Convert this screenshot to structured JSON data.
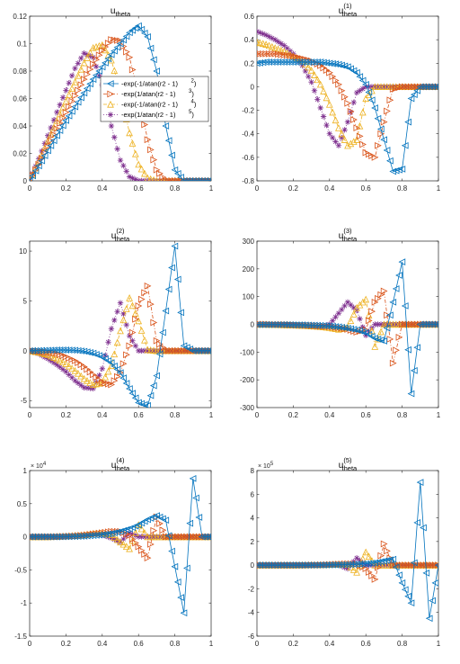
{
  "chart_data": [
    {
      "type": "line",
      "panel": "u_theta",
      "title": "u",
      "title_sub": "theta",
      "title_sup": "",
      "xlim": [
        0,
        1
      ],
      "ylim": [
        0,
        0.12
      ],
      "xticks": [
        "0",
        "0.2",
        "0.4",
        "0.6",
        "0.8",
        "1"
      ],
      "yticks": [
        "0",
        "0.02",
        "0.04",
        "0.06",
        "0.08",
        "0.1",
        "0.12"
      ],
      "ytick_values": [
        0,
        0.02,
        0.04,
        0.06,
        0.08,
        0.1,
        0.12
      ],
      "exponent": "",
      "x": [
        0.0,
        0.05,
        0.1,
        0.15,
        0.2,
        0.25,
        0.3,
        0.35,
        0.4,
        0.45,
        0.5,
        0.55,
        0.6,
        0.65,
        0.7,
        0.75,
        0.8,
        0.85,
        0.9,
        0.95,
        1.0
      ],
      "series": [
        {
          "values": [
            0,
            0.011,
            0.022,
            0.033,
            0.044,
            0.054,
            0.064,
            0.074,
            0.083,
            0.092,
            0.1,
            0.108,
            0.113,
            0.105,
            0.08,
            0.04,
            0.008,
            0,
            0,
            0,
            0
          ]
        },
        {
          "values": [
            0,
            0.012,
            0.025,
            0.038,
            0.05,
            0.062,
            0.074,
            0.085,
            0.095,
            0.103,
            0.102,
            0.09,
            0.063,
            0.03,
            0.008,
            0,
            0,
            0,
            0,
            0,
            0
          ]
        },
        {
          "values": [
            0,
            0.014,
            0.029,
            0.044,
            0.058,
            0.072,
            0.086,
            0.097,
            0.099,
            0.088,
            0.065,
            0.035,
            0.012,
            0.002,
            0,
            0,
            0,
            0,
            0,
            0,
            0
          ]
        },
        {
          "values": [
            0,
            0.016,
            0.033,
            0.05,
            0.066,
            0.082,
            0.093,
            0.09,
            0.07,
            0.04,
            0.015,
            0.003,
            0,
            0,
            0,
            0,
            0,
            0,
            0,
            0,
            0
          ]
        }
      ],
      "legend": {
        "placement": "upper-right",
        "entries": [
          {
            "label": "-exp(-1/atan(r2 - 1)",
            "sup": "2",
            "tail": ")"
          },
          {
            "label": "-exp(1/atan(r2 - 1)",
            "sup": "3",
            "tail": ")"
          },
          {
            "label": "-exp(-1/atan(r2 - 1)",
            "sup": "4",
            "tail": ")"
          },
          {
            "label": "-exp(1/atan(r2 - 1)",
            "sup": "5",
            "tail": ")"
          }
        ]
      }
    },
    {
      "type": "line",
      "panel": "u_theta_1",
      "title": "u",
      "title_sub": "theta",
      "title_sup": "(1)",
      "xlim": [
        0,
        1
      ],
      "ylim": [
        -0.8,
        0.6
      ],
      "xticks": [
        "0",
        "0.2",
        "0.4",
        "0.6",
        "0.8",
        "1"
      ],
      "yticks": [
        "-0.8",
        "-0.6",
        "-0.4",
        "-0.2",
        "0",
        "0.2",
        "0.4",
        "0.6"
      ],
      "ytick_values": [
        -0.8,
        -0.6,
        -0.4,
        -0.2,
        0,
        0.2,
        0.4,
        0.6
      ],
      "exponent": "",
      "x": [
        0.0,
        0.05,
        0.1,
        0.15,
        0.2,
        0.25,
        0.3,
        0.35,
        0.4,
        0.45,
        0.5,
        0.55,
        0.6,
        0.65,
        0.7,
        0.75,
        0.8,
        0.85,
        0.9,
        0.95,
        1.0
      ],
      "series": [
        {
          "values": [
            0.2,
            0.21,
            0.21,
            0.21,
            0.21,
            0.21,
            0.21,
            0.21,
            0.2,
            0.19,
            0.17,
            0.12,
            0.02,
            -0.18,
            -0.45,
            -0.72,
            -0.7,
            -0.1,
            0,
            0,
            0
          ]
        },
        {
          "values": [
            0.28,
            0.28,
            0.28,
            0.27,
            0.26,
            0.24,
            0.22,
            0.18,
            0.12,
            0.02,
            -0.14,
            -0.35,
            -0.56,
            -0.6,
            -0.3,
            -0.02,
            0,
            0,
            0,
            0,
            0
          ]
        },
        {
          "values": [
            0.38,
            0.36,
            0.33,
            0.3,
            0.26,
            0.22,
            0.14,
            0.02,
            -0.15,
            -0.35,
            -0.5,
            -0.45,
            -0.1,
            0,
            0,
            0,
            0,
            0,
            0,
            0,
            0
          ]
        },
        {
          "values": [
            0.47,
            0.44,
            0.4,
            0.35,
            0.28,
            0.18,
            0.04,
            -0.18,
            -0.4,
            -0.5,
            -0.3,
            -0.05,
            0,
            0,
            0,
            0,
            0,
            0,
            0,
            0,
            0
          ]
        }
      ]
    },
    {
      "type": "line",
      "panel": "u_theta_2",
      "title": "u",
      "title_sub": "theta",
      "title_sup": "(2)",
      "xlim": [
        0,
        1
      ],
      "ylim": [
        -5.7,
        11
      ],
      "xticks": [
        "0",
        "0.2",
        "0.4",
        "0.6",
        "0.8",
        "1"
      ],
      "yticks": [
        "-5",
        "0",
        "5",
        "10"
      ],
      "ytick_values": [
        -5,
        0,
        5,
        10
      ],
      "exponent": "",
      "x": [
        0.0,
        0.05,
        0.1,
        0.15,
        0.2,
        0.25,
        0.3,
        0.35,
        0.4,
        0.45,
        0.5,
        0.55,
        0.6,
        0.65,
        0.7,
        0.75,
        0.8,
        0.85,
        0.9,
        0.95,
        1.0
      ],
      "series": [
        {
          "values": [
            0,
            0.02,
            0.05,
            0.08,
            0.08,
            0.05,
            -0.05,
            -0.25,
            -0.6,
            -1.2,
            -2.2,
            -3.8,
            -5.2,
            -5.5,
            -2.5,
            4.0,
            10.5,
            0.5,
            0,
            0,
            0
          ]
        },
        {
          "values": [
            0,
            -0.05,
            -0.15,
            -0.3,
            -0.6,
            -1.0,
            -1.6,
            -2.4,
            -3.2,
            -3.4,
            -2.2,
            0.5,
            4.5,
            6.5,
            1.0,
            0,
            0,
            0,
            0,
            0,
            0
          ]
        },
        {
          "values": [
            0,
            -0.15,
            -0.4,
            -0.8,
            -1.3,
            -2.0,
            -2.8,
            -3.4,
            -3.2,
            -1.5,
            2.0,
            5.3,
            3.0,
            0.1,
            0,
            0,
            0,
            0,
            0,
            0,
            0
          ]
        },
        {
          "values": [
            0,
            -0.3,
            -0.8,
            -1.4,
            -2.1,
            -3.0,
            -3.7,
            -3.8,
            -1.8,
            2.2,
            4.8,
            1.5,
            0,
            0,
            0,
            0,
            0,
            0,
            0,
            0,
            0
          ]
        }
      ]
    },
    {
      "type": "line",
      "panel": "u_theta_3",
      "title": "u",
      "title_sub": "theta",
      "title_sup": "(3)",
      "xlim": [
        0,
        1
      ],
      "ylim": [
        -300,
        300
      ],
      "xticks": [
        "0",
        "0.2",
        "0.4",
        "0.6",
        "0.8",
        "1"
      ],
      "yticks": [
        "-300",
        "-200",
        "-100",
        "0",
        "100",
        "200",
        "300"
      ],
      "ytick_values": [
        -300,
        -200,
        -100,
        0,
        100,
        200,
        300
      ],
      "exponent": "",
      "x": [
        0.0,
        0.05,
        0.1,
        0.15,
        0.2,
        0.25,
        0.3,
        0.35,
        0.4,
        0.45,
        0.5,
        0.55,
        0.6,
        0.65,
        0.7,
        0.75,
        0.8,
        0.85,
        0.9,
        0.95,
        1.0
      ],
      "series": [
        {
          "values": [
            -1,
            -1,
            -1,
            -1,
            -2,
            -2,
            -3,
            -4,
            -6,
            -9,
            -14,
            -20,
            -30,
            -50,
            -60,
            80,
            225,
            -250,
            0,
            0,
            0
          ]
        },
        {
          "values": [
            0,
            0,
            -1,
            -1,
            -2,
            -3,
            -4,
            -6,
            -8,
            -12,
            -18,
            -28,
            -20,
            80,
            120,
            -140,
            0,
            0,
            0,
            0,
            0
          ]
        },
        {
          "values": [
            0,
            0,
            -1,
            -2,
            -3,
            -4,
            -6,
            -8,
            -12,
            -18,
            -10,
            60,
            90,
            -80,
            0,
            0,
            0,
            0,
            0,
            0,
            0
          ]
        },
        {
          "values": [
            0,
            -1,
            -1,
            -2,
            -3,
            -5,
            -8,
            -10,
            0,
            40,
            80,
            50,
            -40,
            0,
            0,
            0,
            0,
            0,
            0,
            0,
            0
          ]
        }
      ]
    },
    {
      "type": "line",
      "panel": "u_theta_4",
      "title": "u",
      "title_sub": "theta",
      "title_sup": "(4)",
      "xlim": [
        0,
        1
      ],
      "ylim": [
        -1.5,
        1
      ],
      "xticks": [
        "0",
        "0.2",
        "0.4",
        "0.6",
        "0.8",
        "1"
      ],
      "yticks": [
        "-1.5",
        "-1",
        "-0.5",
        "0",
        "0.5",
        "1"
      ],
      "ytick_values": [
        -1.5,
        -1,
        -0.5,
        0,
        0.5,
        1
      ],
      "exponent": "4",
      "x": [
        0.0,
        0.05,
        0.1,
        0.15,
        0.2,
        0.25,
        0.3,
        0.35,
        0.4,
        0.45,
        0.5,
        0.55,
        0.6,
        0.65,
        0.7,
        0.75,
        0.8,
        0.85,
        0.9,
        0.95,
        1.0
      ],
      "series": [
        {
          "values": [
            0,
            0,
            0,
            0,
            0.002,
            0.005,
            0.01,
            0.02,
            0.03,
            0.05,
            0.08,
            0.12,
            0.18,
            0.26,
            0.32,
            0.25,
            -0.45,
            -1.15,
            0.88,
            0,
            0
          ]
        },
        {
          "values": [
            0,
            0,
            0,
            0,
            0.005,
            0.01,
            0.02,
            0.04,
            0.06,
            0.08,
            0.08,
            0.02,
            -0.15,
            -0.32,
            0.3,
            0,
            0,
            0,
            0,
            0,
            0
          ]
        },
        {
          "values": [
            0,
            0,
            0,
            0.005,
            0.01,
            0.02,
            0.03,
            0.05,
            0.06,
            0.03,
            -0.08,
            -0.18,
            0.18,
            0,
            0,
            0,
            0,
            0,
            0,
            0,
            0
          ]
        },
        {
          "values": [
            0,
            0,
            0,
            0.005,
            0.01,
            0.02,
            0.03,
            0.04,
            0.03,
            -0.02,
            -0.08,
            0.06,
            0,
            0,
            0,
            0,
            0,
            0,
            0,
            0,
            0
          ]
        }
      ]
    },
    {
      "type": "line",
      "panel": "u_theta_5",
      "title": "u",
      "title_sub": "theta",
      "title_sup": "(5)",
      "xlim": [
        0,
        1
      ],
      "ylim": [
        -6,
        8
      ],
      "xticks": [
        "0",
        "0.2",
        "0.4",
        "0.6",
        "0.8",
        "1"
      ],
      "yticks": [
        "-6",
        "-4",
        "-2",
        "0",
        "2",
        "4",
        "6",
        "8"
      ],
      "ytick_values": [
        -6,
        -4,
        -2,
        0,
        2,
        4,
        6,
        8
      ],
      "exponent": "5",
      "x": [
        0.0,
        0.05,
        0.1,
        0.15,
        0.2,
        0.25,
        0.3,
        0.35,
        0.4,
        0.45,
        0.5,
        0.55,
        0.6,
        0.65,
        0.7,
        0.75,
        0.8,
        0.85,
        0.9,
        0.95,
        1.0
      ],
      "series": [
        {
          "values": [
            0,
            0,
            0,
            0,
            0,
            0,
            0,
            0.01,
            0.02,
            0.03,
            0.05,
            0.08,
            0.12,
            0.2,
            0.35,
            0.5,
            -1.5,
            -3.2,
            7.0,
            -4.5,
            0
          ]
        },
        {
          "values": [
            0,
            0,
            0,
            0,
            0,
            0,
            0.01,
            0.02,
            0.04,
            0.08,
            0.12,
            0.1,
            -0.3,
            -1.2,
            1.8,
            0,
            0,
            0,
            0,
            0,
            0
          ]
        },
        {
          "values": [
            0,
            0,
            0,
            0,
            0,
            0.01,
            0.02,
            0.03,
            0.05,
            0.08,
            0.05,
            -0.6,
            1.1,
            0,
            0,
            0,
            0,
            0,
            0,
            0,
            0
          ]
        },
        {
          "values": [
            0,
            0,
            0,
            0,
            0.01,
            0.01,
            0.02,
            0.03,
            0.04,
            0.02,
            -0.3,
            0.6,
            0,
            0,
            0,
            0,
            0,
            0,
            0,
            0,
            0
          ]
        }
      ]
    }
  ],
  "series_style": [
    {
      "color": "#0072BD",
      "marker": "triangle-left",
      "dash": ""
    },
    {
      "color": "#D95319",
      "marker": "triangle-right",
      "dash": "4,2,1,2"
    },
    {
      "color": "#EDB120",
      "marker": "triangle-up",
      "dash": "4,2,1,2"
    },
    {
      "color": "#7E2F8E",
      "marker": "asterisk",
      "dash": "1,2"
    }
  ],
  "exponent_base": "× 10"
}
